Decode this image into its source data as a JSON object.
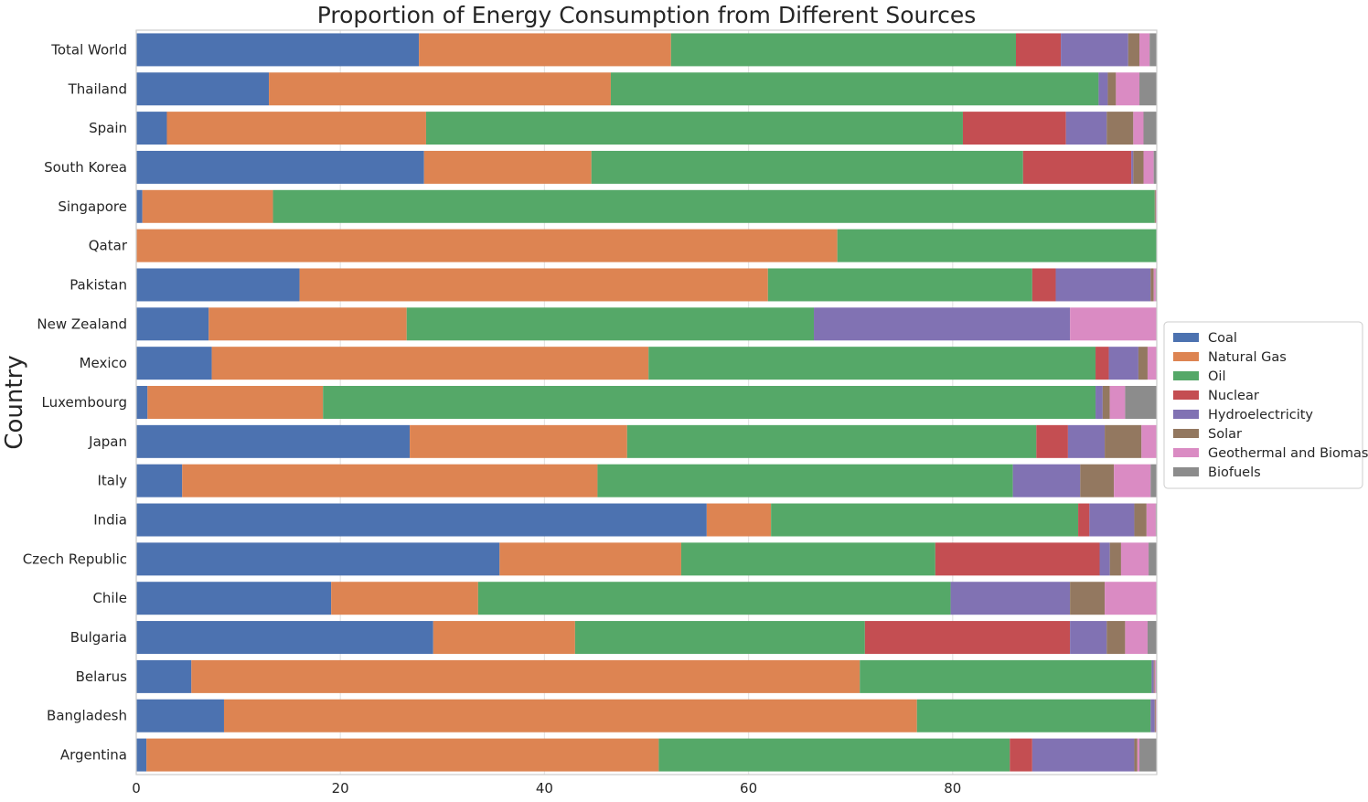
{
  "chart_data": {
    "type": "bar",
    "orientation": "horizontal",
    "stacked": true,
    "title": "Proportion of Energy Consumption from Different Sources",
    "xlabel": "",
    "ylabel": "Country",
    "xlim": [
      0,
      100
    ],
    "xticks": [
      "0",
      "20",
      "40",
      "60",
      "80"
    ],
    "grid": true,
    "legend": "center-right outside",
    "categories": [
      "Total World",
      "Thailand",
      "Spain",
      "South Korea",
      "Singapore",
      "Qatar",
      "Pakistan",
      "New Zealand",
      "Mexico",
      "Luxembourg",
      "Japan",
      "Italy",
      "India",
      "Czech Republic",
      "Chile",
      "Bulgaria",
      "Belarus",
      "Bangladesh",
      "Argentina"
    ],
    "series": [
      {
        "name": "Coal",
        "color": "#4c72b0",
        "values": [
          27.7,
          13.0,
          3.0,
          28.2,
          0.6,
          0.0,
          16.0,
          7.1,
          7.4,
          1.1,
          26.8,
          4.5,
          55.9,
          35.6,
          19.1,
          29.1,
          5.4,
          8.6,
          1.0
        ]
      },
      {
        "name": "Natural Gas",
        "color": "#dd8452",
        "values": [
          24.7,
          33.5,
          25.4,
          16.4,
          12.8,
          68.7,
          45.9,
          19.4,
          42.8,
          17.2,
          21.3,
          40.7,
          6.3,
          17.8,
          14.4,
          13.9,
          65.5,
          67.9,
          50.2
        ]
      },
      {
        "name": "Oil",
        "color": "#55a868",
        "values": [
          33.8,
          47.8,
          52.6,
          42.3,
          86.4,
          31.3,
          25.9,
          39.9,
          43.8,
          75.7,
          40.1,
          40.7,
          30.1,
          24.9,
          46.3,
          28.4,
          28.6,
          22.9,
          34.4
        ]
      },
      {
        "name": "Nuclear",
        "color": "#c44e52",
        "values": [
          4.4,
          0.0,
          10.1,
          10.6,
          0.0,
          0.0,
          2.3,
          0.0,
          1.3,
          0.0,
          3.1,
          0.0,
          1.1,
          16.1,
          0.0,
          20.1,
          0.0,
          0.0,
          2.2
        ]
      },
      {
        "name": "Hydroelectricity",
        "color": "#8172b3",
        "values": [
          6.6,
          0.9,
          4.0,
          0.2,
          0.0,
          0.0,
          9.3,
          25.1,
          2.9,
          0.7,
          3.6,
          6.6,
          4.4,
          1.0,
          11.7,
          3.6,
          0.2,
          0.4,
          10.0
        ]
      },
      {
        "name": "Solar",
        "color": "#937860",
        "values": [
          1.1,
          0.8,
          2.6,
          1.0,
          0.1,
          0.0,
          0.3,
          0.0,
          0.9,
          0.7,
          3.6,
          3.3,
          1.2,
          1.1,
          3.4,
          1.8,
          0.1,
          0.1,
          0.3
        ]
      },
      {
        "name": "Geothermal and Biomass",
        "color": "#da8bc3",
        "values": [
          1.0,
          2.3,
          1.0,
          1.0,
          0.1,
          0.0,
          0.2,
          8.5,
          0.9,
          1.5,
          1.5,
          3.6,
          0.9,
          2.7,
          5.1,
          2.2,
          0.1,
          0.1,
          0.2
        ]
      },
      {
        "name": "Biofuels",
        "color": "#8c8c8c",
        "values": [
          0.7,
          1.7,
          1.3,
          0.3,
          0.0,
          0.0,
          0.1,
          0.0,
          0.0,
          3.1,
          0.0,
          0.6,
          0.1,
          0.8,
          0.0,
          1.0,
          0.1,
          0.0,
          1.7
        ]
      }
    ]
  }
}
